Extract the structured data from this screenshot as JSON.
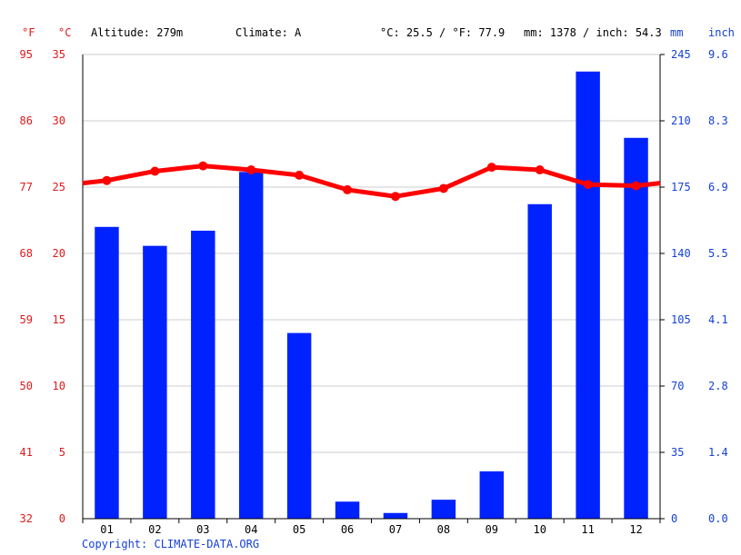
{
  "header": {
    "unit_f": "°F",
    "unit_c": "°C",
    "altitude": "Altitude: 279m",
    "climate": "Climate: A",
    "temp_summary": "°C: 25.5 / °F: 77.9",
    "precip_summary": "mm: 1378 / inch: 54.3",
    "unit_mm": "mm",
    "unit_inch": "inch"
  },
  "footer": {
    "copyright": "Copyright: CLIMATE-DATA.ORG"
  },
  "colors": {
    "temperature": "#ff0000",
    "precipitation": "#0022ff",
    "grid": "#cccccc",
    "axis_left_text": "#e0191b",
    "axis_right_text": "#1440d8"
  },
  "chart_data": {
    "type": "bar",
    "categories": [
      "01",
      "02",
      "03",
      "04",
      "05",
      "06",
      "07",
      "08",
      "09",
      "10",
      "11",
      "12"
    ],
    "series": [
      {
        "kind": "bar",
        "axis": "right",
        "values": [
          154,
          144,
          152,
          183,
          98,
          9,
          3,
          10,
          25,
          166,
          236,
          201
        ]
      },
      {
        "kind": "line",
        "axis": "left",
        "values": [
          25.5,
          26.2,
          26.6,
          26.3,
          25.9,
          24.8,
          24.3,
          24.9,
          26.5,
          26.3,
          25.2,
          25.1
        ]
      }
    ],
    "y_left_celsius": {
      "ticks": [
        0,
        5,
        10,
        15,
        20,
        25,
        30,
        35
      ],
      "labels": [
        "0",
        "5",
        "10",
        "15",
        "20",
        "25",
        "30",
        "35"
      ],
      "range": [
        0,
        35
      ]
    },
    "y_left_fahrenheit": {
      "labels": [
        "32",
        "41",
        "50",
        "59",
        "68",
        "77",
        "86",
        "95"
      ]
    },
    "y_right_mm": {
      "ticks": [
        0,
        35,
        70,
        105,
        140,
        175,
        210,
        245
      ],
      "labels": [
        "0",
        "35",
        "70",
        "105",
        "140",
        "175",
        "210",
        "245"
      ],
      "range": [
        0,
        245
      ]
    },
    "y_right_inch": {
      "labels": [
        "0.0",
        "1.4",
        "2.8",
        "4.1",
        "5.5",
        "6.9",
        "8.3",
        "9.6"
      ]
    },
    "grid": true
  }
}
